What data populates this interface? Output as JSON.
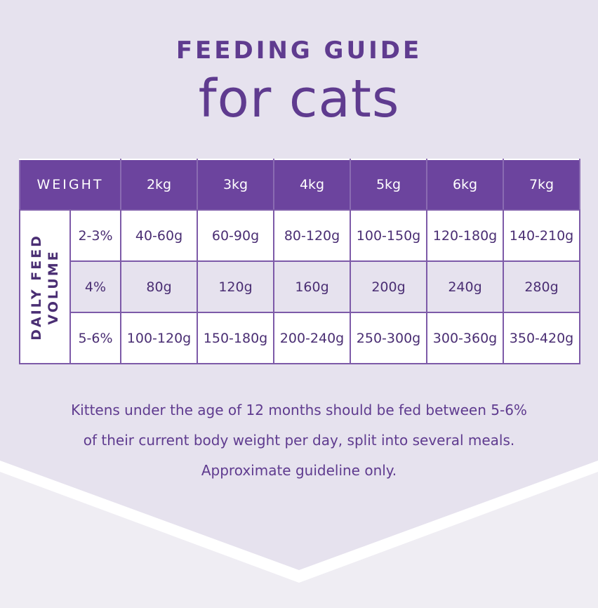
{
  "title_line1": "FEEDING GUIDE",
  "title_line2": "for cats",
  "table": {
    "weight_header": "WEIGHT",
    "weights": [
      "2kg",
      "3kg",
      "4kg",
      "5kg",
      "6kg",
      "7kg"
    ],
    "side_label_line1": "DAILY FEED",
    "side_label_line2": "VOLUME",
    "rows": [
      {
        "pct": "2-3%",
        "values": [
          "40-60g",
          "60-90g",
          "80-120g",
          "100-150g",
          "120-180g",
          "140-210g"
        ]
      },
      {
        "pct": "4%",
        "values": [
          "80g",
          "120g",
          "160g",
          "200g",
          "240g",
          "280g"
        ]
      },
      {
        "pct": "5-6%",
        "values": [
          "100-120g",
          "150-180g",
          "200-240g",
          "250-300g",
          "300-360g",
          "350-420g"
        ]
      }
    ]
  },
  "note": {
    "line1": "Kittens under the age of 12 months should be fed between 5-6%",
    "line2": "of their current body weight per day, split into several meals.",
    "line3": "Approximate guideline only."
  },
  "colors": {
    "header_purple": "#6c449e",
    "text_purple": "#5f3b8f",
    "background_lavender": "#e6e2ee"
  }
}
